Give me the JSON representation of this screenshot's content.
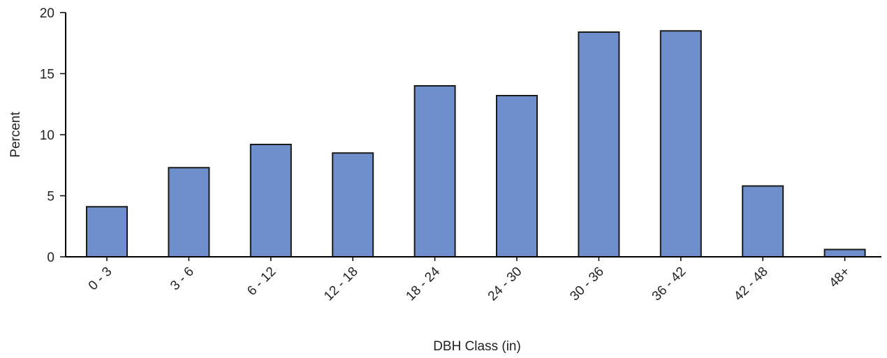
{
  "chart_data": {
    "type": "bar",
    "title": "",
    "xlabel": "DBH Class (in)",
    "ylabel": "Percent",
    "categories": [
      "0 - 3",
      "3 - 6",
      "6 - 12",
      "12 - 18",
      "18 - 24",
      "24 - 30",
      "30 - 36",
      "36 - 42",
      "42 - 48",
      "48+"
    ],
    "values": [
      4.1,
      7.3,
      9.2,
      8.5,
      14.0,
      13.2,
      18.4,
      18.5,
      5.8,
      0.6
    ],
    "ylim": [
      0,
      20
    ],
    "yticks": [
      "0",
      "5",
      "10",
      "15",
      "20"
    ],
    "grid": false,
    "legend": "none",
    "bar_color": "#6f8fcc",
    "bar_edge_color": "#1a1a1a"
  }
}
